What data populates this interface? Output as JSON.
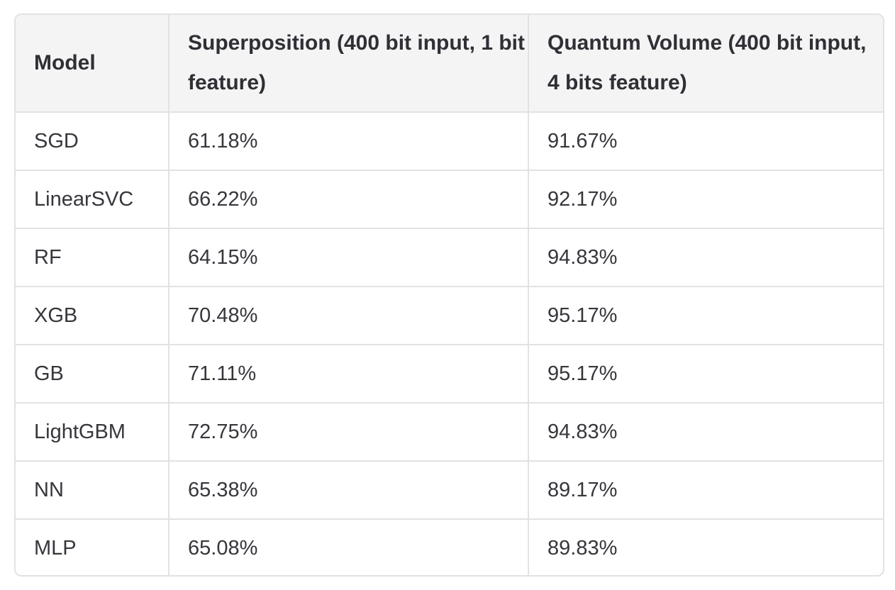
{
  "table": {
    "headers": [
      "Model",
      "Superposition (400 bit input, 1 bit feature)",
      "Quantum Volume (400 bit input, 4 bits feature)"
    ],
    "rows": [
      [
        "SGD",
        "61.18%",
        "91.67%"
      ],
      [
        "LinearSVC",
        "66.22%",
        "92.17%"
      ],
      [
        "RF",
        "64.15%",
        "94.83%"
      ],
      [
        "XGB",
        "70.48%",
        "95.17%"
      ],
      [
        "GB",
        "71.11%",
        "95.17%"
      ],
      [
        "LightGBM",
        "72.75%",
        "94.83%"
      ],
      [
        "NN",
        "65.38%",
        "89.17%"
      ],
      [
        "MLP",
        "65.08%",
        "89.83%"
      ]
    ]
  },
  "colors": {
    "header_background": "#f4f4f5",
    "border": "#e2e2e4",
    "text": "#2d2d33"
  }
}
